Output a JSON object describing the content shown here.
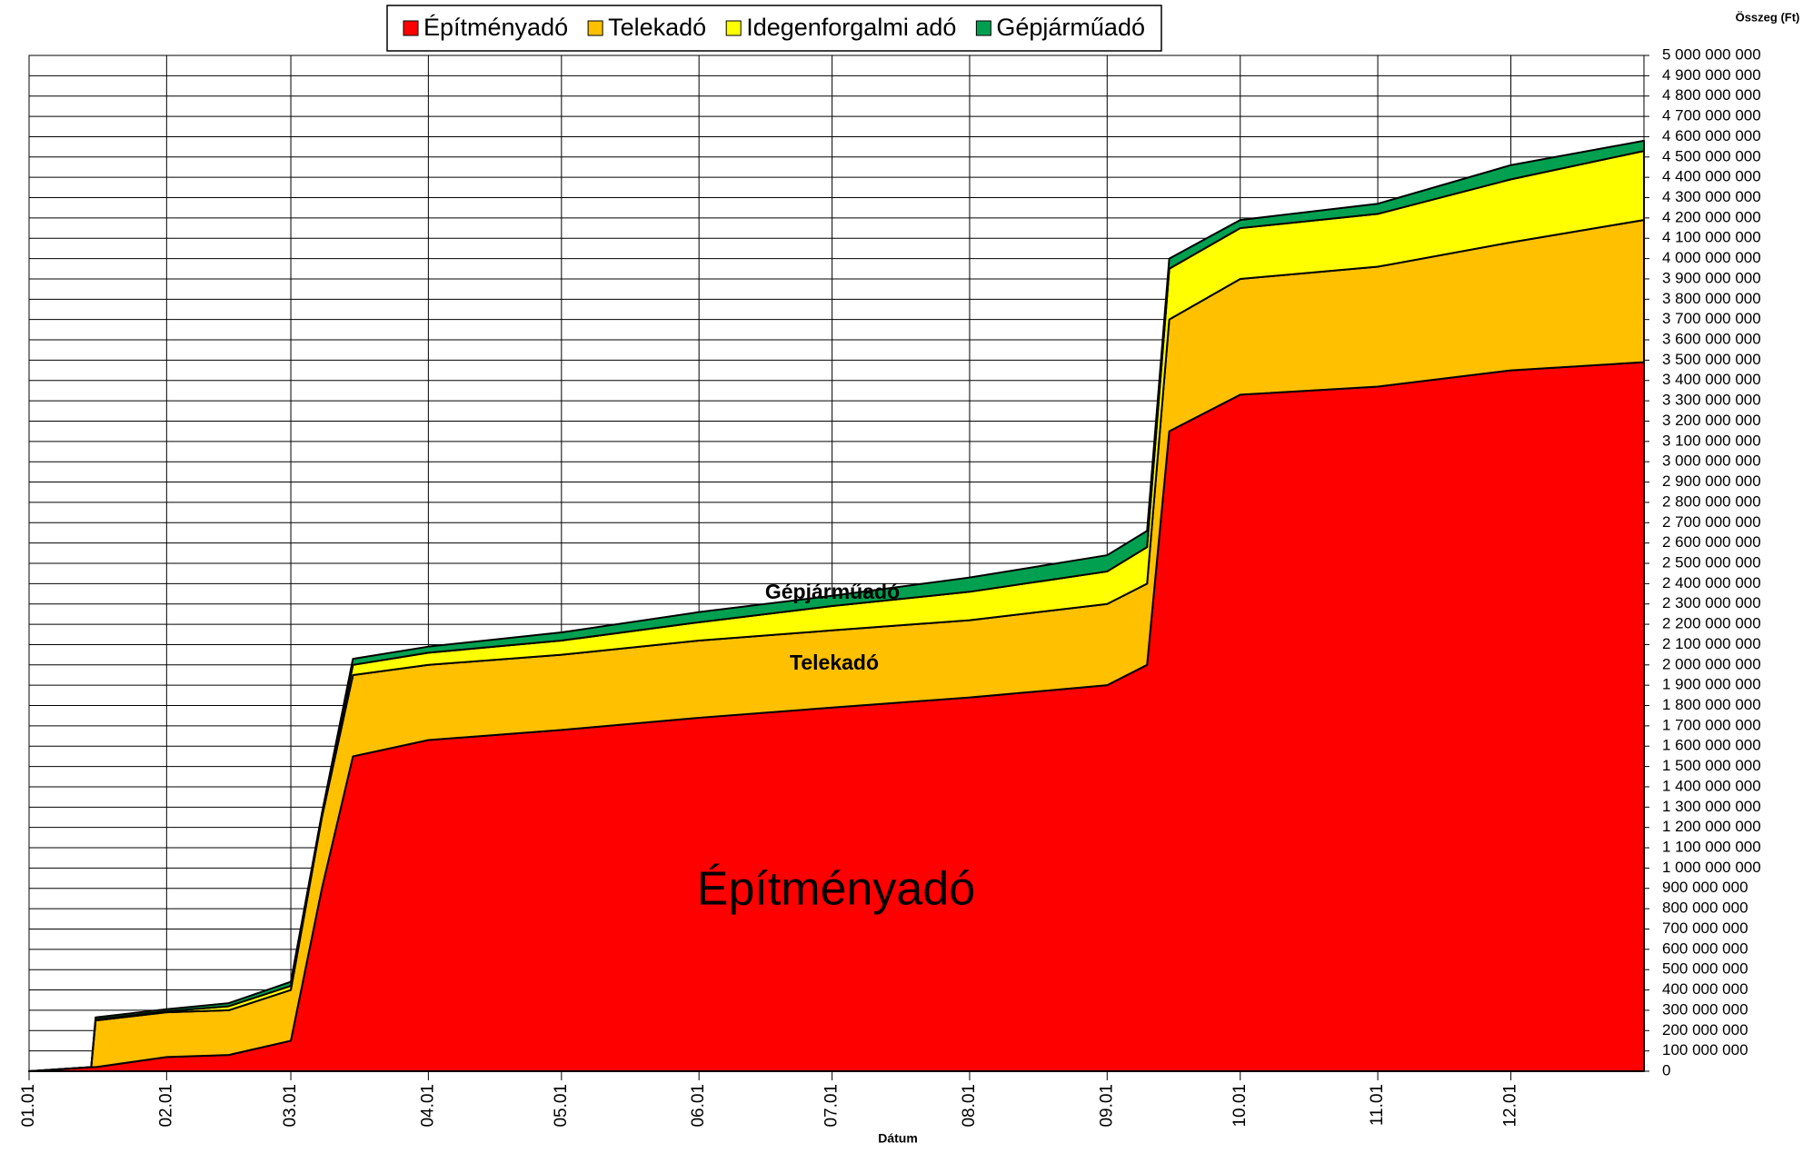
{
  "chart_data": {
    "type": "stacked_area",
    "x_label": "Dátum",
    "y_label": "Összeg (Ft)",
    "annotations": [
      "Építményadó",
      "Telekadó",
      "Gépjárműadó"
    ],
    "legend": "top",
    "grid": true,
    "x": [
      "01.01",
      "01.15",
      "01.16",
      "02.01",
      "02.15",
      "03.01",
      "03.08",
      "03.15",
      "04.01",
      "05.01",
      "06.01",
      "07.01",
      "08.01",
      "09.01",
      "09.10",
      "09.15",
      "10.01",
      "11.01",
      "12.01",
      "12.31"
    ],
    "xticks": [
      "01.01",
      "02.01",
      "03.01",
      "04.01",
      "05.01",
      "06.01",
      "07.01",
      "08.01",
      "09.01",
      "10.01",
      "11.01",
      "12.01"
    ],
    "series": [
      {
        "name": "Építményadó",
        "color": "#ff0000",
        "values": [
          0,
          20000000,
          20000000,
          70000000,
          80000000,
          150000000,
          900000000,
          1550000000,
          1630000000,
          1680000000,
          1740000000,
          1790000000,
          1840000000,
          1900000000,
          2000000000,
          3150000000,
          3330000000,
          3370000000,
          3450000000,
          3490000000
        ]
      },
      {
        "name": "Telekadó",
        "color": "#ffc000",
        "values": [
          0,
          0,
          230000000,
          220000000,
          220000000,
          250000000,
          350000000,
          400000000,
          370000000,
          370000000,
          380000000,
          380000000,
          380000000,
          400000000,
          400000000,
          550000000,
          570000000,
          590000000,
          630000000,
          700000000
        ]
      },
      {
        "name": "Idegenforgalmi adó",
        "color": "#ffff00",
        "values": [
          0,
          0,
          5000000,
          5000000,
          20000000,
          20000000,
          10000000,
          50000000,
          60000000,
          70000000,
          90000000,
          120000000,
          140000000,
          160000000,
          180000000,
          250000000,
          250000000,
          260000000,
          310000000,
          340000000
        ]
      },
      {
        "name": "Gépjárműadó",
        "color": "#00a050",
        "values": [
          0,
          0,
          10000000,
          10000000,
          15000000,
          20000000,
          10000000,
          30000000,
          30000000,
          40000000,
          50000000,
          50000000,
          70000000,
          80000000,
          80000000,
          50000000,
          40000000,
          50000000,
          70000000,
          50000000
        ]
      }
    ],
    "ylim": [
      0,
      5000000000
    ],
    "yticks": [
      0,
      {
        "value": 100000000,
        "label": "100 000 000"
      },
      {
        "value": 200000000,
        "label": "200 000 000"
      },
      {
        "value": 300000000,
        "label": "300 000 000"
      },
      {
        "value": 400000000,
        "label": "400 000 000"
      },
      {
        "value": 500000000,
        "label": "500 000 000"
      },
      {
        "value": 600000000,
        "label": "600 000 000"
      },
      {
        "value": 700000000,
        "label": "700 000 000"
      },
      {
        "value": 800000000,
        "label": "800 000 000"
      },
      {
        "value": 900000000,
        "label": "900 000 000"
      },
      {
        "value": 1000000000,
        "label": "1 000 000 000"
      },
      {
        "value": 1100000000,
        "label": "1 100 000 000"
      },
      {
        "value": 1200000000,
        "label": "1 200 000 000"
      },
      {
        "value": 1300000000,
        "label": "1 300 000 000"
      },
      {
        "value": 1400000000,
        "label": "1 400 000 000"
      },
      {
        "value": 1500000000,
        "label": "1 500 000 000"
      },
      {
        "value": 1600000000,
        "label": "1 600 000 000"
      },
      {
        "value": 1700000000,
        "label": "1 700 000 000"
      },
      {
        "value": 1800000000,
        "label": "1 800 000 000"
      },
      {
        "value": 1900000000,
        "label": "1 900 000 000"
      },
      {
        "value": 2000000000,
        "label": "2 000 000 000"
      },
      {
        "value": 2100000000,
        "label": "2 100 000 000"
      },
      {
        "value": 2200000000,
        "label": "2 200 000 000"
      },
      {
        "value": 2300000000,
        "label": "2 300 000 000"
      },
      {
        "value": 2400000000,
        "label": "2 400 000 000"
      },
      {
        "value": 2500000000,
        "label": "2 500 000 000"
      },
      {
        "value": 2600000000,
        "label": "2 600 000 000"
      },
      {
        "value": 2700000000,
        "label": "2 700 000 000"
      },
      {
        "value": 2800000000,
        "label": "2 800 000 000"
      },
      {
        "value": 2900000000,
        "label": "2 900 000 000"
      },
      {
        "value": 3000000000,
        "label": "3 000 000 000"
      },
      {
        "value": 3100000000,
        "label": "3 100 000 000"
      },
      {
        "value": 3200000000,
        "label": "3 200 000 000"
      },
      {
        "value": 3300000000,
        "label": "3 300 000 000"
      },
      {
        "value": 3400000000,
        "label": "3 400 000 000"
      },
      {
        "value": 3500000000,
        "label": "3 500 000 000"
      },
      {
        "value": 3600000000,
        "label": "3 600 000 000"
      },
      {
        "value": 3700000000,
        "label": "3 700 000 000"
      },
      {
        "value": 3800000000,
        "label": "3 800 000 000"
      },
      {
        "value": 3900000000,
        "label": "3 900 000 000"
      },
      {
        "value": 4000000000,
        "label": "4 000 000 000"
      },
      {
        "value": 4100000000,
        "label": "4 100 000 000"
      },
      {
        "value": 4200000000,
        "label": "4 200 000 000"
      },
      {
        "value": 4300000000,
        "label": "4 300 000 000"
      },
      {
        "value": 4400000000,
        "label": "4 400 000 000"
      },
      {
        "value": 4500000000,
        "label": "4 500 000 000"
      },
      {
        "value": 4600000000,
        "label": "4 600 000 000"
      },
      {
        "value": 4700000000,
        "label": "4 700 000 000"
      },
      {
        "value": 4800000000,
        "label": "4 800 000 000"
      },
      {
        "value": 4900000000,
        "label": "4 900 000 000"
      },
      {
        "value": 5000000000,
        "label": "5 000 000 000"
      }
    ]
  }
}
